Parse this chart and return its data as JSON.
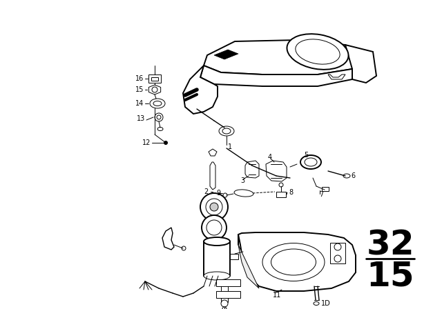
{
  "background_color": "#ffffff",
  "line_color": "#000000",
  "page_number_top": "32",
  "page_number_bottom": "15",
  "figsize": [
    6.4,
    4.48
  ],
  "dpi": 100,
  "lw_main": 1.4,
  "lw_med": 1.0,
  "lw_thin": 0.7,
  "label_fontsize": 7.0,
  "pagenum_fontsize": 36
}
